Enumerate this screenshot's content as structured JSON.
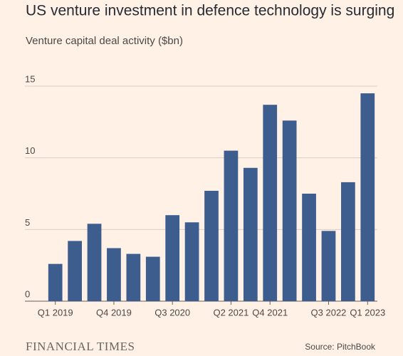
{
  "chart_data": {
    "type": "bar",
    "title": "US venture investment in defence technology is surging",
    "subtitle": "Venture capital deal activity ($bn)",
    "categories": [
      "Q1 2019",
      null,
      null,
      "Q4 2019",
      null,
      null,
      "Q3 2020",
      null,
      null,
      "Q2 2021",
      null,
      "Q4 2021",
      null,
      null,
      "Q3 2022",
      null,
      "Q1 2023"
    ],
    "values": [
      2.6,
      4.2,
      5.4,
      3.7,
      3.3,
      3.1,
      6.0,
      5.5,
      7.7,
      10.5,
      9.3,
      13.7,
      12.6,
      7.5,
      4.9,
      8.3,
      14.5
    ],
    "color": "#3d5d8f",
    "ylim": [
      0,
      15
    ],
    "yticks": [
      0,
      5,
      10,
      15
    ],
    "grid": true,
    "brand": "FINANCIAL TIMES",
    "source": "Source: PitchBook"
  }
}
